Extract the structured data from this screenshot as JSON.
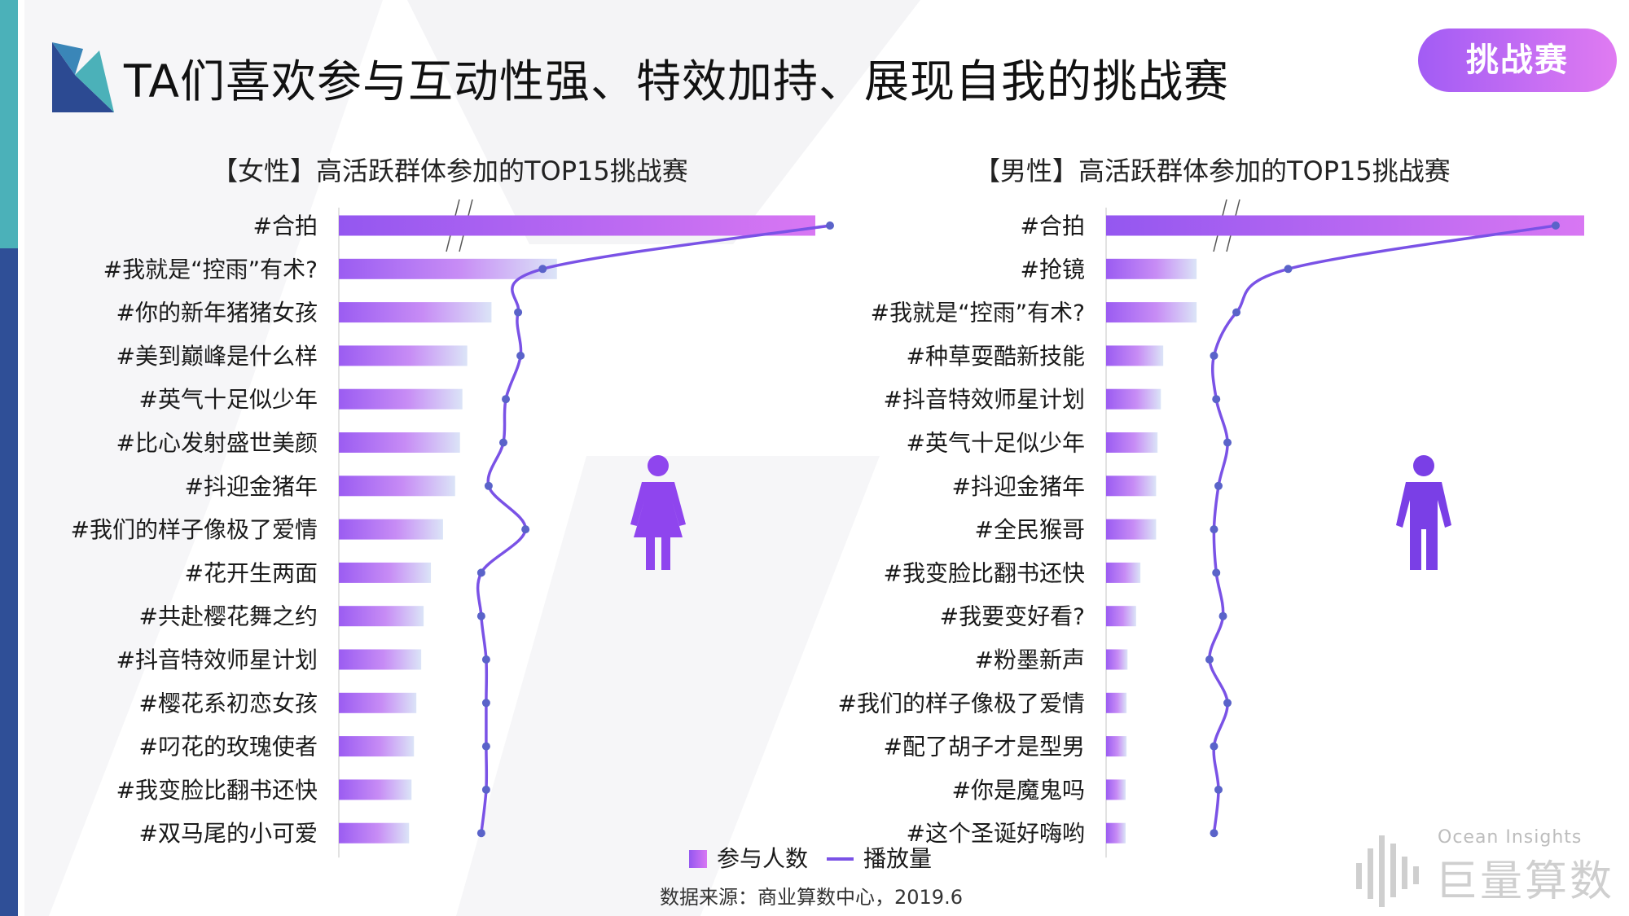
{
  "title": "TA们喜欢参与互动性强、特效加持、展现自我的挑战赛",
  "tag": "挑战赛",
  "source": "数据来源：商业算数中心，2019.6",
  "brand": {
    "en": "Ocean Insights",
    "cn": "巨量算数"
  },
  "colors": {
    "bar_start": "#9b5cf2",
    "bar_end": "#cdd8f5",
    "line": "#7a52e6",
    "female_icon": "#8f45ee",
    "male_icon": "#7a3fe6"
  },
  "chart_data": [
    {
      "type": "bar",
      "title": "【女性】高活跃群体参加的TOP15挑战赛",
      "categories": [
        "#合拍",
        "#我就是“控雨”有术?",
        "#你的新年猪猪女孩",
        "#美到巅峰是什么样",
        "#英气十足似少年",
        "#比心发射盛世美颜",
        "#抖迎金猪年",
        "#我们的样子像极了爱情",
        "#花开生两面",
        "#共赴樱花舞之约",
        "#抖音特效师星计划",
        "#樱花系初恋女孩",
        "#叼花的玫瑰使者",
        "#我变脸比翻书还快",
        "#双马尾的小可爱"
      ],
      "series": [
        {
          "name": "参与人数",
          "values": [
            100,
            45,
            31.5,
            26.5,
            25.5,
            25,
            24,
            21.5,
            19,
            17.5,
            17,
            16,
            15.5,
            15,
            14.5
          ]
        },
        {
          "name": "播放量",
          "values": [
            100,
            41.5,
            36.5,
            37,
            34,
            33.5,
            30.5,
            38,
            29,
            29,
            30,
            30,
            30,
            30,
            29
          ]
        }
      ],
      "axis_break": true,
      "legend": "bottom",
      "grid": false
    },
    {
      "type": "bar",
      "title": "【男性】高活跃群体参加的TOP15挑战赛",
      "categories": [
        "#合拍",
        "#抢镜",
        "#我就是“控雨”有术?",
        "#种草耍酷新技能",
        "#抖音特效师星计划",
        "#英气十足似少年",
        "#抖迎金猪年",
        "#全民猴哥",
        "#我变脸比翻书还快",
        "#我要变好看?",
        "#粉墨新声",
        "#我们的样子像极了爱情",
        "#配了胡子才是型男",
        "#你是魔鬼吗",
        "#这个圣诞好嗨哟"
      ],
      "series": [
        {
          "name": "参与人数",
          "values": [
            100,
            19,
            19,
            12,
            11.5,
            10.8,
            10.5,
            10.5,
            7.2,
            6.3,
            4.5,
            4.3,
            4.3,
            4.1,
            4.1
          ]
        },
        {
          "name": "播放量",
          "values": [
            100,
            40.5,
            29,
            24,
            24.5,
            27,
            25,
            24,
            24.5,
            26,
            23,
            27,
            24,
            25,
            24
          ]
        }
      ],
      "axis_break": true,
      "legend": "bottom",
      "grid": false
    }
  ]
}
